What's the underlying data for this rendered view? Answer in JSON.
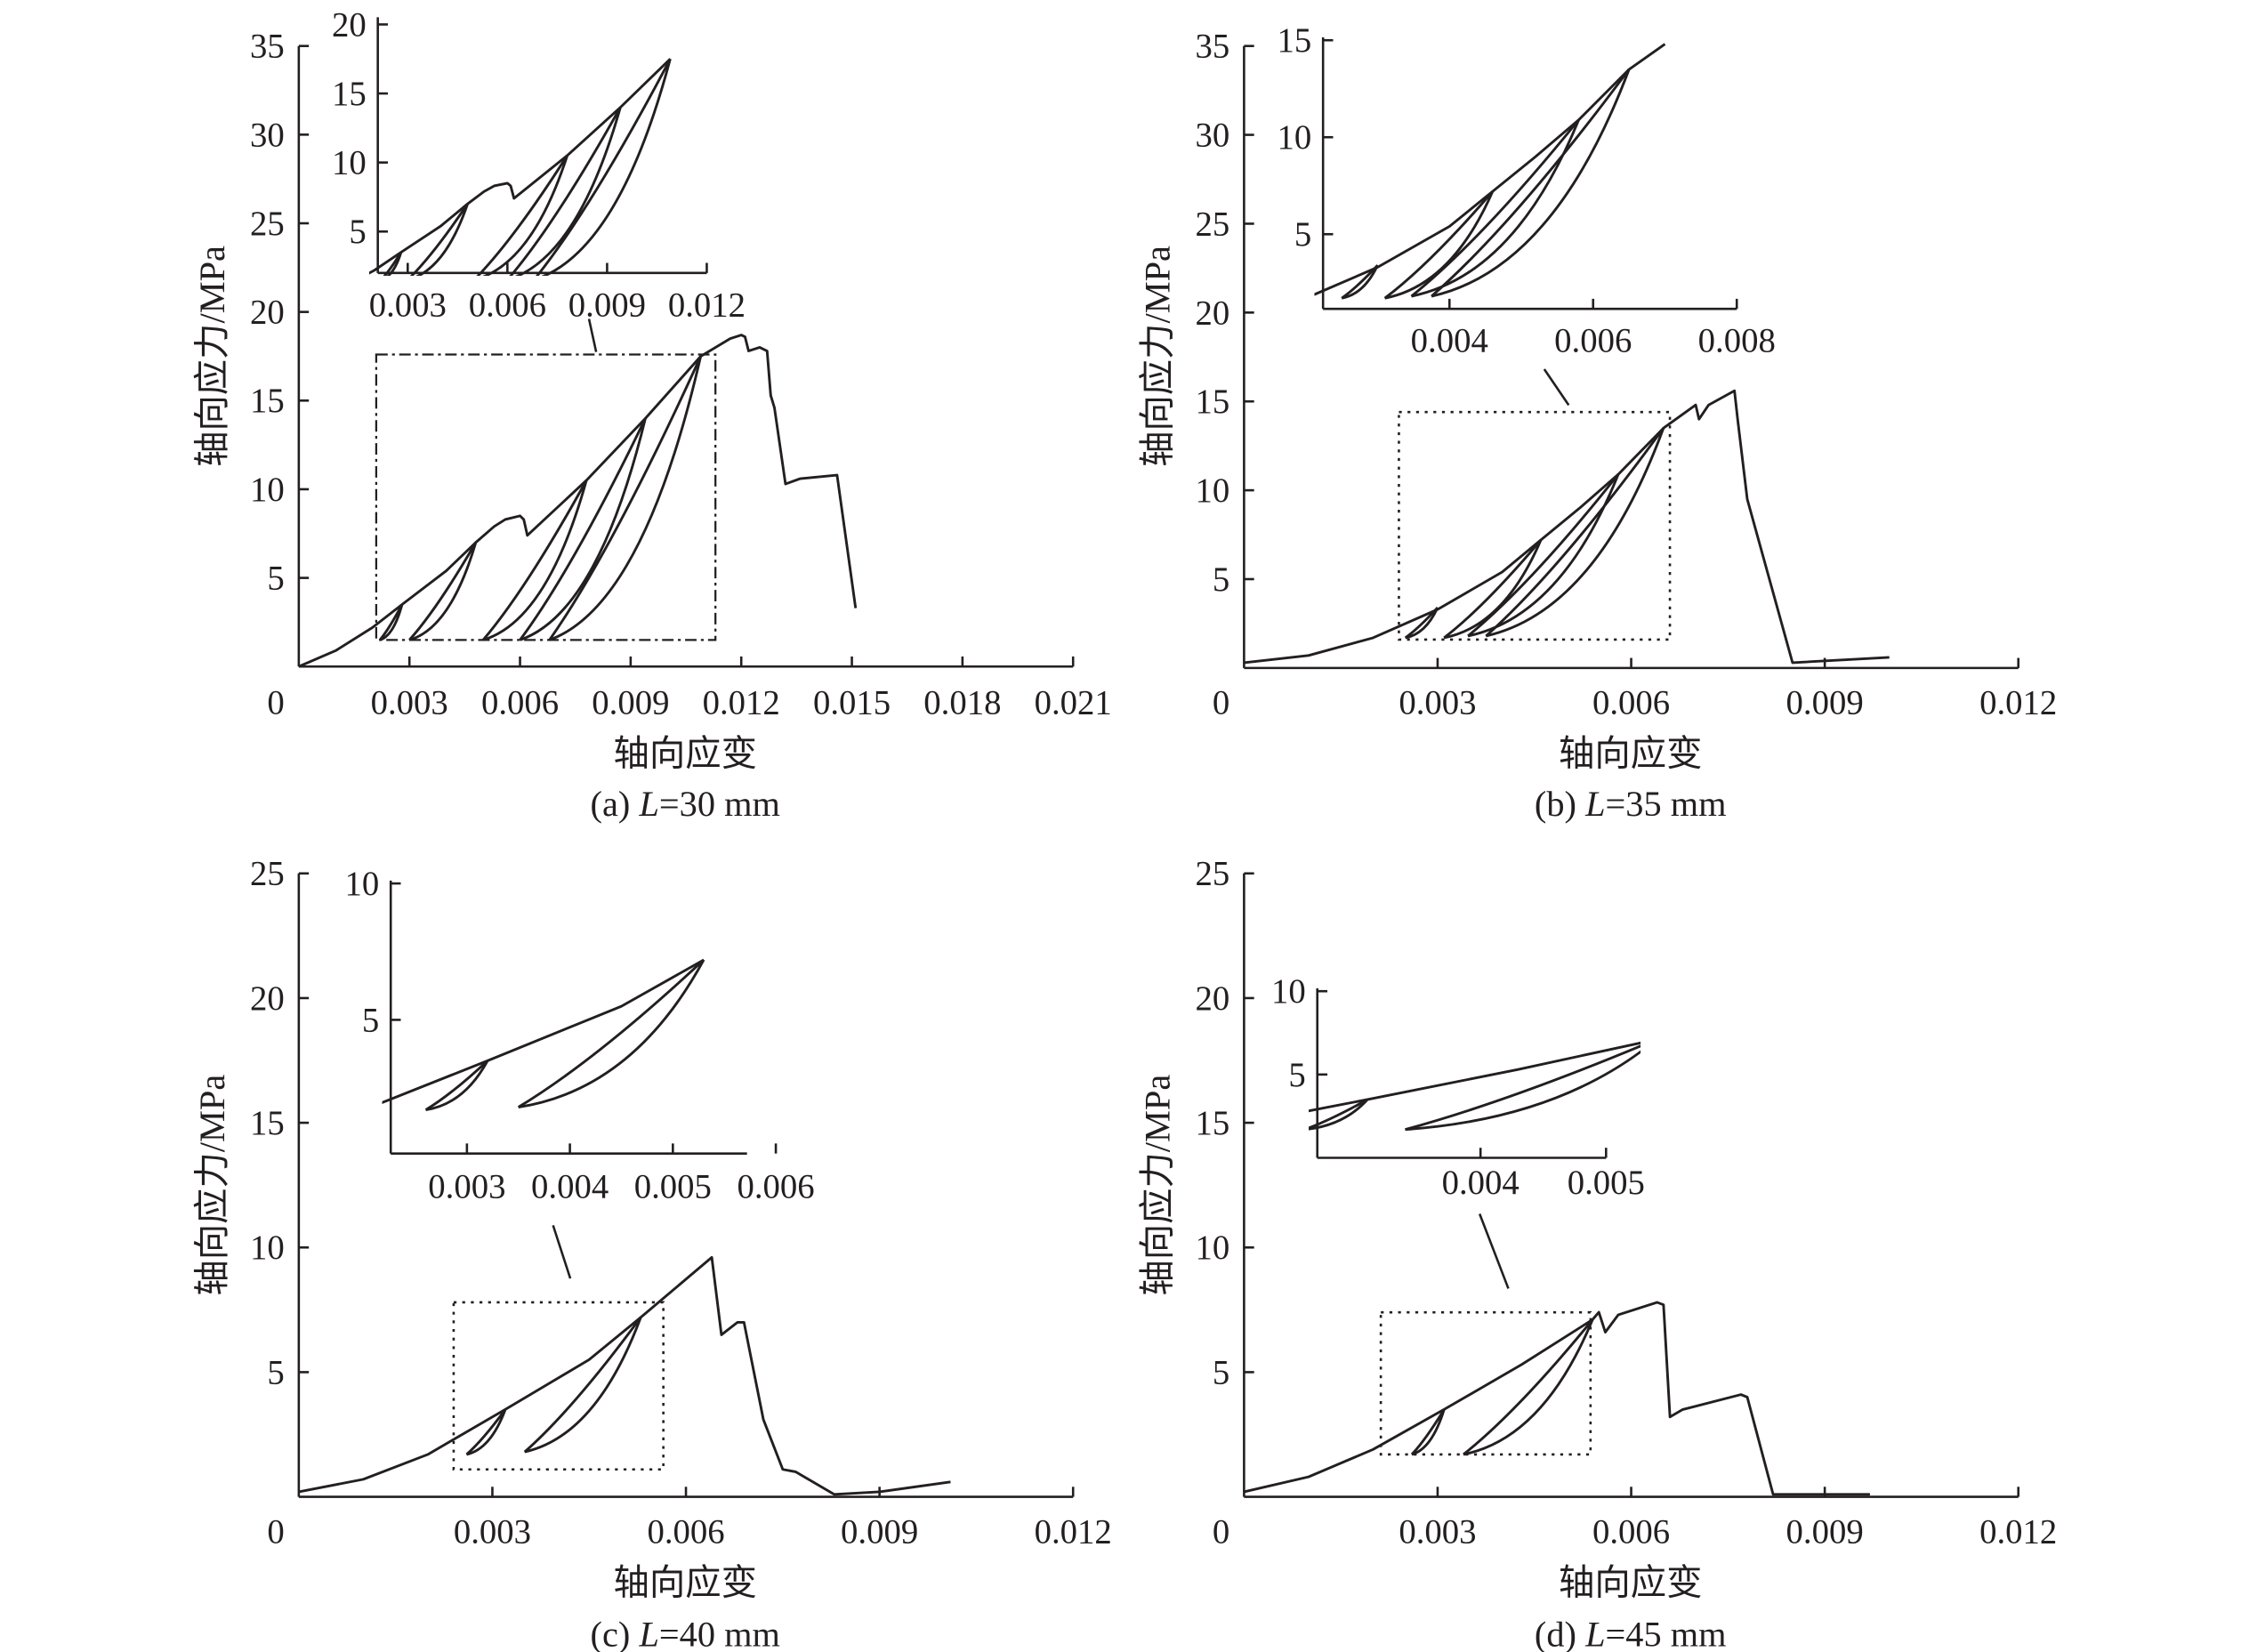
{
  "y_label": "轴向应力/MPa",
  "x_label": "轴向应变",
  "chart_data": [
    {
      "type": "line",
      "caption": {
        "prefix": "(a) ",
        "var": "L",
        "value": "=30 mm"
      },
      "xlim": [
        0,
        0.021
      ],
      "ylim": [
        0,
        35
      ],
      "xticks": [
        0.003,
        0.006,
        0.009,
        0.012,
        0.015,
        0.018,
        0.021
      ],
      "xtick_labels": [
        "0.003",
        "0.006",
        "0.009",
        "0.012",
        "0.015",
        "0.018",
        "0.021"
      ],
      "yticks": [
        5,
        10,
        15,
        20,
        25,
        30,
        35
      ],
      "ytick_labels": [
        "5",
        "10",
        "15",
        "20",
        "25",
        "30",
        "35"
      ],
      "origin_label": "0",
      "envelope": [
        [
          0,
          0
        ],
        [
          0.001,
          0.9
        ],
        [
          0.002,
          2.2
        ],
        [
          0.0028,
          3.5
        ],
        [
          0.004,
          5.4
        ],
        [
          0.0048,
          7.0
        ],
        [
          0.0053,
          7.9
        ],
        [
          0.0056,
          8.3
        ],
        [
          0.006,
          8.5
        ],
        [
          0.0061,
          8.3
        ],
        [
          0.0062,
          7.4
        ],
        [
          0.0078,
          10.5
        ],
        [
          0.0094,
          14.0
        ],
        [
          0.0109,
          17.5
        ],
        [
          0.0117,
          18.5
        ],
        [
          0.012,
          18.7
        ],
        [
          0.0121,
          18.6
        ],
        [
          0.0122,
          17.8
        ],
        [
          0.0125,
          18.0
        ],
        [
          0.0127,
          17.8
        ],
        [
          0.0128,
          15.3
        ],
        [
          0.0129,
          14.6
        ],
        [
          0.0132,
          10.3
        ],
        [
          0.0136,
          10.6
        ],
        [
          0.0146,
          10.8
        ],
        [
          0.0151,
          3.3
        ]
      ],
      "loops": [
        {
          "peak": [
            0.0028,
            3.5
          ],
          "valley": [
            0.0022,
            1.5
          ]
        },
        {
          "peak": [
            0.0048,
            7.0
          ],
          "valley": [
            0.003,
            1.5
          ]
        },
        {
          "peak": [
            0.0078,
            10.5
          ],
          "valley": [
            0.005,
            1.5
          ]
        },
        {
          "peak": [
            0.0094,
            14.0
          ],
          "valley": [
            0.006,
            1.5
          ]
        },
        {
          "peak": [
            0.0109,
            17.5
          ],
          "valley": [
            0.0068,
            1.5
          ]
        }
      ],
      "zoom_box": {
        "x": [
          0.0021,
          0.0113
        ],
        "y": [
          1.5,
          17.6
        ],
        "style": "dash-dot"
      },
      "inset": {
        "xlim": [
          0.0021,
          0.012
        ],
        "ylim": [
          2.0,
          20
        ],
        "xticks": [
          0.003,
          0.006,
          0.009,
          0.012
        ],
        "xtick_labels": [
          "0.003",
          "0.006",
          "0.009",
          "0.012"
        ],
        "yticks": [
          5,
          10,
          15,
          20
        ],
        "ytick_labels": [
          "5",
          "10",
          "15",
          "20"
        ]
      }
    },
    {
      "type": "line",
      "caption": {
        "prefix": "(b) ",
        "var": "L",
        "value": "=35 mm"
      },
      "xlim": [
        0,
        0.012
      ],
      "ylim": [
        0,
        35
      ],
      "xticks": [
        0.003,
        0.006,
        0.009,
        0.012
      ],
      "xtick_labels": [
        "0.003",
        "0.006",
        "0.009",
        "0.012"
      ],
      "yticks": [
        5,
        10,
        15,
        20,
        25,
        30,
        35
      ],
      "ytick_labels": [
        "5",
        "10",
        "15",
        "20",
        "25",
        "30",
        "35"
      ],
      "origin_label": "0",
      "envelope": [
        [
          0,
          0.3
        ],
        [
          0.001,
          0.7
        ],
        [
          0.002,
          1.7
        ],
        [
          0.003,
          3.3
        ],
        [
          0.004,
          5.4
        ],
        [
          0.0046,
          7.2
        ],
        [
          0.0052,
          9.0
        ],
        [
          0.0058,
          10.9
        ],
        [
          0.0065,
          13.5
        ],
        [
          0.007,
          14.8
        ],
        [
          0.00705,
          14.0
        ],
        [
          0.0072,
          14.8
        ],
        [
          0.0076,
          15.6
        ],
        [
          0.00765,
          14.0
        ],
        [
          0.0078,
          9.5
        ],
        [
          0.0085,
          0.3
        ],
        [
          0.01,
          0.6
        ]
      ],
      "loops": [
        {
          "peak": [
            0.003,
            3.4
          ],
          "valley": [
            0.0025,
            1.7
          ]
        },
        {
          "peak": [
            0.0046,
            7.2
          ],
          "valley": [
            0.0031,
            1.7
          ]
        },
        {
          "peak": [
            0.0058,
            10.9
          ],
          "valley": [
            0.00347,
            1.8
          ]
        },
        {
          "peak": [
            0.0065,
            13.5
          ],
          "valley": [
            0.00375,
            1.8
          ]
        }
      ],
      "zoom_box": {
        "x": [
          0.0024,
          0.0066
        ],
        "y": [
          1.6,
          14.4
        ],
        "style": "dotted"
      },
      "inset": {
        "xlim": [
          0.00224,
          0.008
        ],
        "ylim": [
          1.15,
          15
        ],
        "xticks": [
          0.004,
          0.006,
          0.008
        ],
        "xtick_labels": [
          "0.004",
          "0.006",
          "0.008"
        ],
        "yticks": [
          5,
          10,
          15
        ],
        "ytick_labels": [
          "5",
          "10",
          "15"
        ]
      }
    },
    {
      "type": "line",
      "caption": {
        "prefix": "(c) ",
        "var": "L",
        "value": "=40 mm"
      },
      "xlim": [
        0,
        0.012
      ],
      "ylim": [
        0,
        25
      ],
      "xticks": [
        0.003,
        0.006,
        0.009,
        0.012
      ],
      "xtick_labels": [
        "0.003",
        "0.006",
        "0.009",
        "0.012"
      ],
      "yticks": [
        5,
        10,
        15,
        20,
        25
      ],
      "ytick_labels": [
        "5",
        "10",
        "15",
        "20",
        "25"
      ],
      "origin_label": "0",
      "envelope": [
        [
          0,
          0.2
        ],
        [
          0.001,
          0.7
        ],
        [
          0.002,
          1.7
        ],
        [
          0.0032,
          3.5
        ],
        [
          0.0045,
          5.5
        ],
        [
          0.0053,
          7.2
        ],
        [
          0.0064,
          9.6
        ],
        [
          0.00655,
          6.5
        ],
        [
          0.0068,
          7.0
        ],
        [
          0.0069,
          7.0
        ],
        [
          0.0072,
          3.1
        ],
        [
          0.0075,
          1.1
        ],
        [
          0.0077,
          1.0
        ],
        [
          0.0083,
          0.1
        ],
        [
          0.009,
          0.2
        ],
        [
          0.0101,
          0.6
        ]
      ],
      "loops": [
        {
          "peak": [
            0.0032,
            3.5
          ],
          "valley": [
            0.0026,
            1.7
          ]
        },
        {
          "peak": [
            0.0053,
            7.2
          ],
          "valley": [
            0.0035,
            1.8
          ]
        }
      ],
      "zoom_box": {
        "x": [
          0.0024,
          0.00565
        ],
        "y": [
          1.1,
          7.8
        ],
        "style": "dotted"
      },
      "inset": {
        "xlim": [
          0.00226,
          0.00572
        ],
        "ylim": [
          0.1,
          10
        ],
        "xticks": [
          0.003,
          0.004,
          0.005,
          0.006
        ],
        "xtick_labels": [
          "0.003",
          "0.004",
          "0.005",
          "0.006"
        ],
        "yticks": [
          5,
          10
        ],
        "ytick_labels": [
          "5",
          "10"
        ]
      }
    },
    {
      "type": "line",
      "caption": {
        "prefix": "(d) ",
        "var": "L",
        "value": "=45 mm"
      },
      "xlim": [
        0,
        0.012
      ],
      "ylim": [
        0,
        25
      ],
      "xticks": [
        0.003,
        0.006,
        0.009,
        0.012
      ],
      "xtick_labels": [
        "0.003",
        "0.006",
        "0.009",
        "0.012"
      ],
      "yticks": [
        5,
        10,
        15,
        20,
        25
      ],
      "ytick_labels": [
        "5",
        "10",
        "15",
        "20",
        "25"
      ],
      "origin_label": "0",
      "envelope": [
        [
          0,
          0.2
        ],
        [
          0.001,
          0.8
        ],
        [
          0.002,
          1.9
        ],
        [
          0.0031,
          3.5
        ],
        [
          0.0043,
          5.3
        ],
        [
          0.0054,
          7.1
        ],
        [
          0.0055,
          7.4
        ],
        [
          0.0056,
          6.6
        ],
        [
          0.0058,
          7.3
        ],
        [
          0.0064,
          7.8
        ],
        [
          0.0065,
          7.7
        ],
        [
          0.0066,
          3.2
        ],
        [
          0.0068,
          3.5
        ],
        [
          0.0077,
          4.1
        ],
        [
          0.0078,
          4.0
        ],
        [
          0.0082,
          0.1
        ],
        [
          0.0097,
          0.1
        ]
      ],
      "loops": [
        {
          "peak": [
            0.0031,
            3.5
          ],
          "valley": [
            0.0026,
            1.7
          ]
        },
        {
          "peak": [
            0.0054,
            7.1
          ],
          "valley": [
            0.0034,
            1.7
          ]
        }
      ],
      "zoom_box": {
        "x": [
          0.00212,
          0.00537
        ],
        "y": [
          1.7,
          7.4
        ],
        "style": "dotted"
      },
      "inset": {
        "xlim": [
          0.0027,
          0.005
        ],
        "ylim": [
          0,
          10
        ],
        "xticks": [
          0.004,
          0.005
        ],
        "xtick_labels": [
          "0.004",
          "0.005"
        ],
        "yticks": [
          5,
          10
        ],
        "ytick_labels": [
          "5",
          "10"
        ]
      }
    }
  ]
}
